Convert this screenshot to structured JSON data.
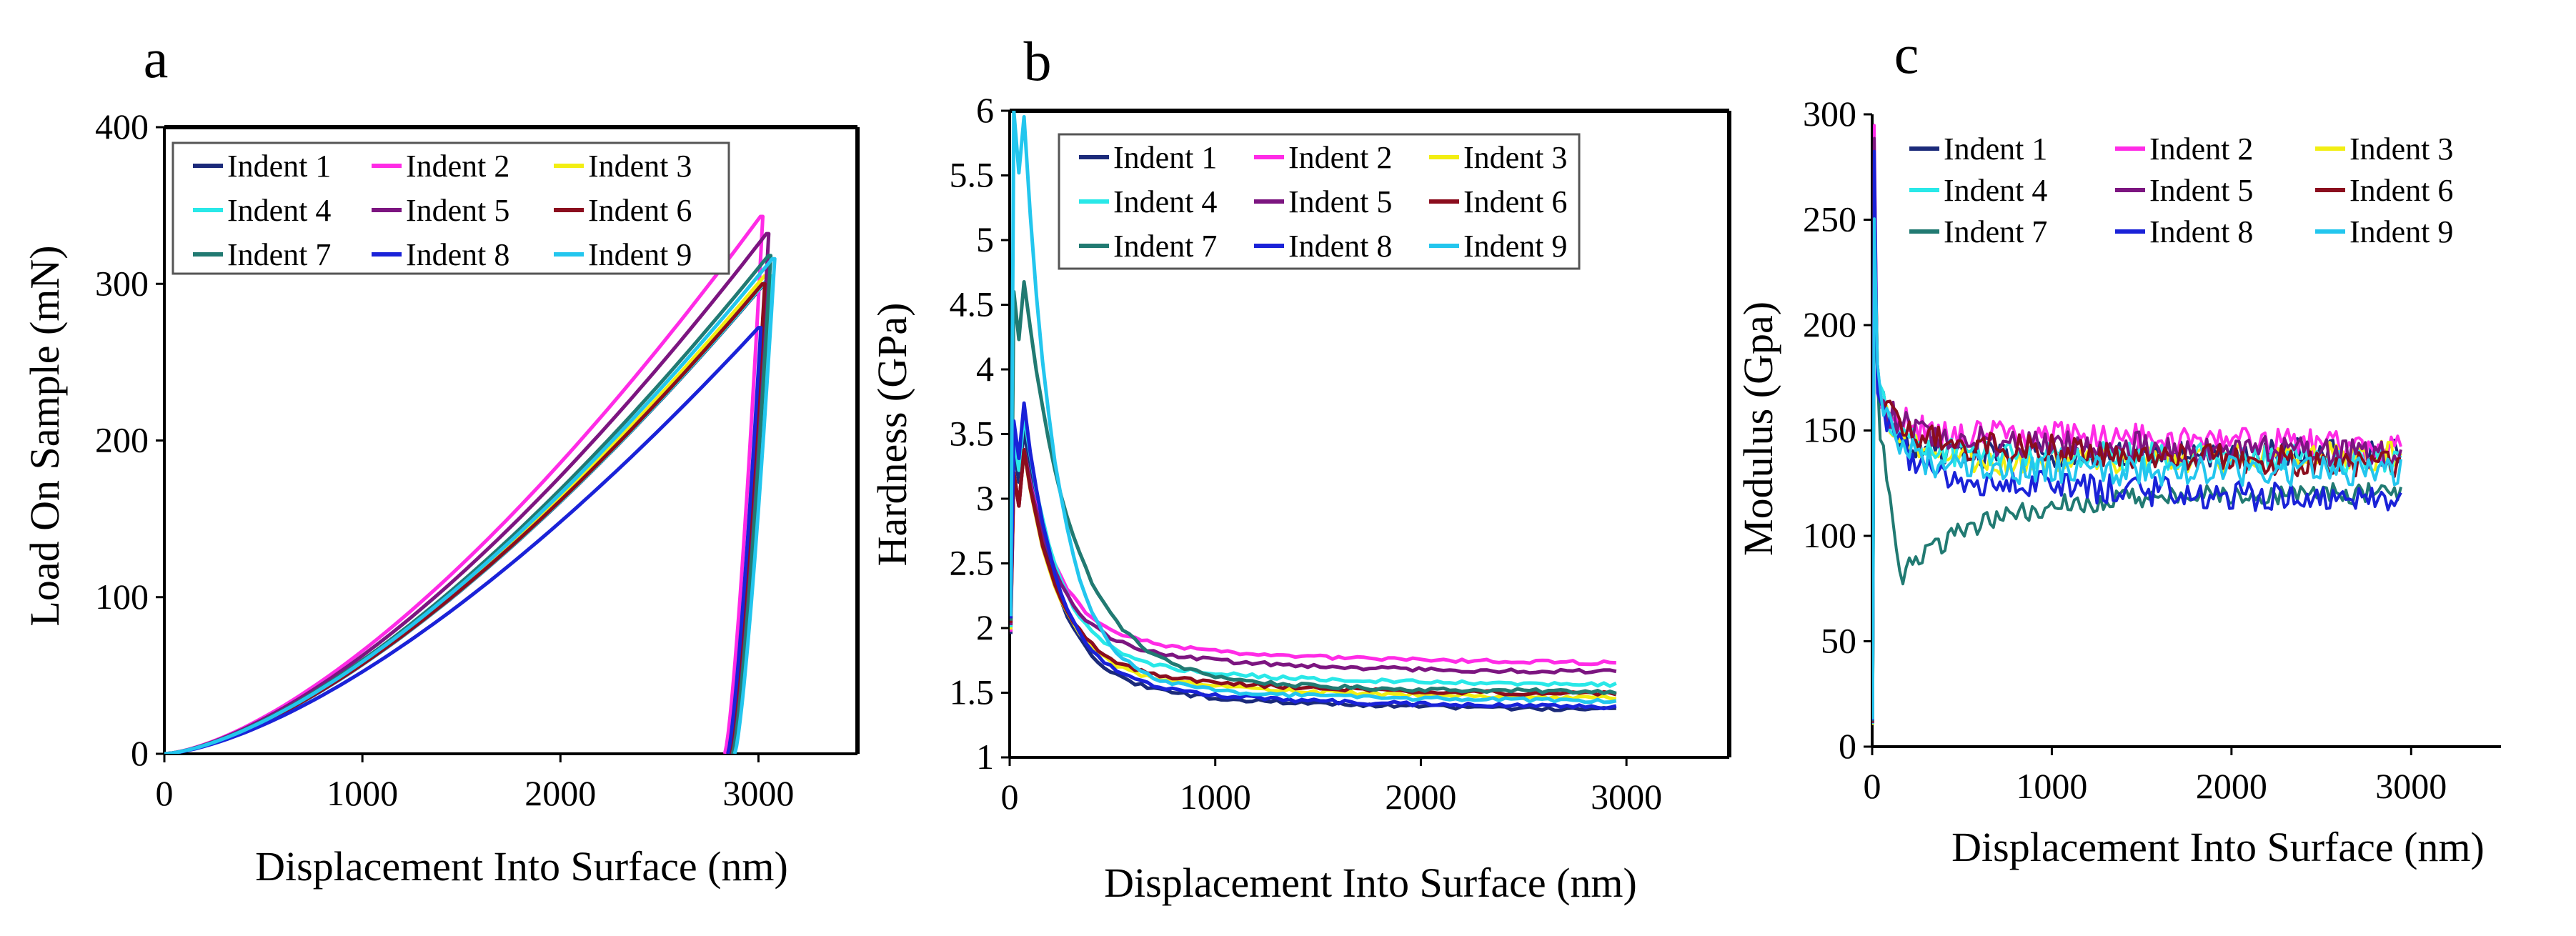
{
  "legend_colors": {
    "Indent 1": "#1b2a7a",
    "Indent 2": "#ff2be6",
    "Indent 3": "#f2ee12",
    "Indent 4": "#29e8e8",
    "Indent 5": "#7c1580",
    "Indent 6": "#8b0d1e",
    "Indent 7": "#217a72",
    "Indent 8": "#1a22d8",
    "Indent 9": "#23c6ee"
  },
  "chart_data": [
    {
      "panel_label": "a",
      "type": "line",
      "xlabel": "Displacement Into Surface (nm)",
      "ylabel": "Load On Sample (mN)",
      "xlim": [
        0,
        3500
      ],
      "ylim": [
        0,
        400
      ],
      "xticks": [
        "0",
        "1000",
        "2000",
        "3000"
      ],
      "yticks": [
        "0",
        "100",
        "200",
        "300",
        "400"
      ],
      "legend": [
        "Indent 1",
        "Indent 2",
        "Indent 3",
        "Indent 4",
        "Indent 5",
        "Indent 6",
        "Indent 7",
        "Indent 8",
        "Indent 9"
      ],
      "legend_position": "top-left",
      "series": [
        {
          "name": "Indent 1",
          "max_load": 300,
          "max_disp": 3030,
          "unload_end": 2850
        },
        {
          "name": "Indent 2",
          "max_load": 343,
          "max_disp": 3010,
          "unload_end": 2830
        },
        {
          "name": "Indent 3",
          "max_load": 305,
          "max_disp": 3030,
          "unload_end": 2855
        },
        {
          "name": "Indent 4",
          "max_load": 305,
          "max_disp": 3060,
          "unload_end": 2875
        },
        {
          "name": "Indent 5",
          "max_load": 332,
          "max_disp": 3040,
          "unload_end": 2860
        },
        {
          "name": "Indent 6",
          "max_load": 300,
          "max_disp": 3020,
          "unload_end": 2850
        },
        {
          "name": "Indent 7",
          "max_load": 318,
          "max_disp": 3050,
          "unload_end": 2870
        },
        {
          "name": "Indent 8",
          "max_load": 272,
          "max_disp": 3000,
          "unload_end": 2845
        },
        {
          "name": "Indent 9",
          "max_load": 316,
          "max_disp": 3070,
          "unload_end": 2880
        }
      ]
    },
    {
      "panel_label": "b",
      "type": "line",
      "xlabel": "Displacement Into Surface (nm)",
      "ylabel": "Hardness (GPa)",
      "xlim": [
        0,
        3500
      ],
      "ylim": [
        1,
        6
      ],
      "xticks": [
        "0",
        "1000",
        "2000",
        "3000"
      ],
      "yticks": [
        "1",
        "1.5",
        "2",
        "2.5",
        "3",
        "3.5",
        "4",
        "4.5",
        "5",
        "5.5",
        "6"
      ],
      "legend": [
        "Indent 1",
        "Indent 2",
        "Indent 3",
        "Indent 4",
        "Indent 5",
        "Indent 6",
        "Indent 7",
        "Indent 8",
        "Indent 9"
      ],
      "legend_position": "top-right",
      "series": [
        {
          "name": "Indent 1",
          "peak": 3.4,
          "final": 1.36
        },
        {
          "name": "Indent 2",
          "peak": 3.2,
          "final": 1.72
        },
        {
          "name": "Indent 3",
          "peak": 3.2,
          "final": 1.45
        },
        {
          "name": "Indent 4",
          "peak": 3.5,
          "final": 1.55
        },
        {
          "name": "Indent 5",
          "peak": 3.2,
          "final": 1.65
        },
        {
          "name": "Indent 6",
          "peak": 3.2,
          "final": 1.48
        },
        {
          "name": "Indent 7",
          "peak": 4.6,
          "final": 1.5
        },
        {
          "name": "Indent 8",
          "peak": 3.6,
          "final": 1.38
        },
        {
          "name": "Indent 9",
          "peak": 6.0,
          "final": 1.43
        }
      ]
    },
    {
      "panel_label": "c",
      "type": "line",
      "xlabel": "Displacement Into Surface (nm)",
      "ylabel": "Modulus (Gpa)",
      "xlim": [
        0,
        3500
      ],
      "ylim": [
        0,
        300
      ],
      "xticks": [
        "0",
        "1000",
        "2000",
        "3000"
      ],
      "yticks": [
        "0",
        "50",
        "100",
        "150",
        "200",
        "250",
        "300"
      ],
      "legend": [
        "Indent 1",
        "Indent 2",
        "Indent 3",
        "Indent 4",
        "Indent 5",
        "Indent 6",
        "Indent 7",
        "Indent 8",
        "Indent 9"
      ],
      "legend_position": "top",
      "series": [
        {
          "name": "Indent 1",
          "level": 138,
          "final": 140
        },
        {
          "name": "Indent 2",
          "level": 150,
          "final": 142
        },
        {
          "name": "Indent 3",
          "level": 135,
          "final": 138
        },
        {
          "name": "Indent 4",
          "level": 140,
          "final": 135
        },
        {
          "name": "Indent 5",
          "level": 147,
          "final": 138
        },
        {
          "name": "Indent 6",
          "level": 145,
          "final": 133
        },
        {
          "name": "Indent 7",
          "level": 120,
          "final": 125
        },
        {
          "name": "Indent 8",
          "level": 128,
          "final": 115
        },
        {
          "name": "Indent 9",
          "level": 132,
          "final": 130
        }
      ]
    }
  ]
}
